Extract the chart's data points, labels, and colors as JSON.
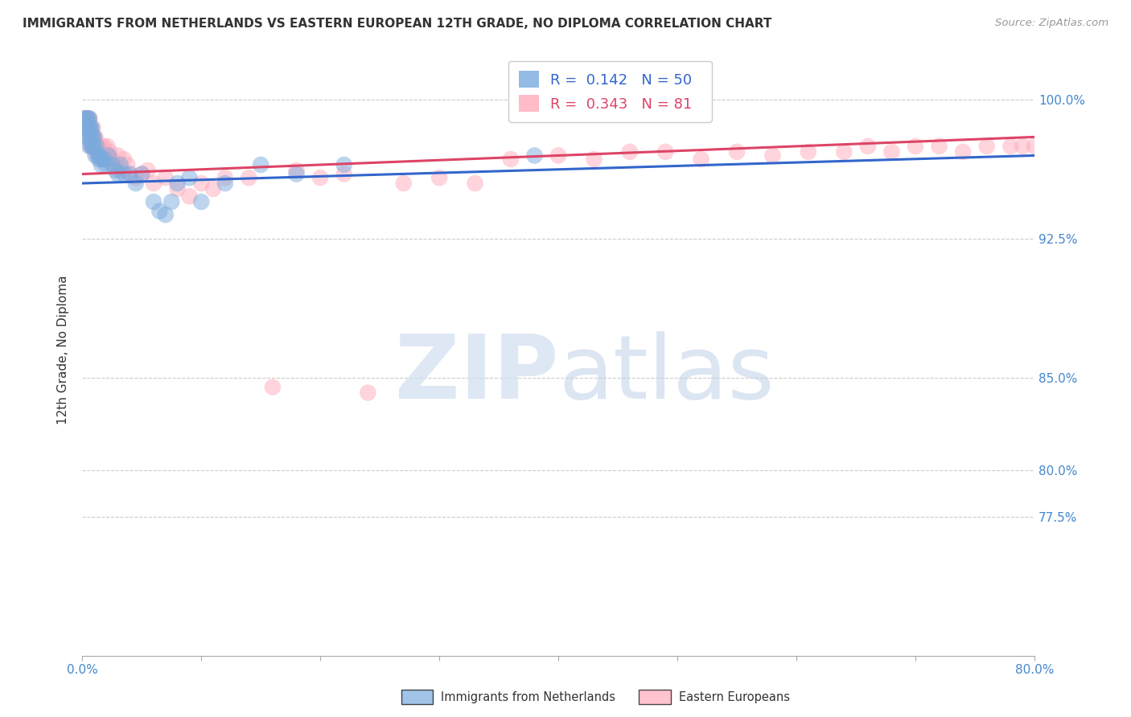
{
  "title": "IMMIGRANTS FROM NETHERLANDS VS EASTERN EUROPEAN 12TH GRADE, NO DIPLOMA CORRELATION CHART",
  "source": "Source: ZipAtlas.com",
  "ylabel": "12th Grade, No Diploma",
  "xlim": [
    0.0,
    0.8
  ],
  "ylim": [
    0.7,
    1.03
  ],
  "netherlands_R": 0.142,
  "netherlands_N": 50,
  "eastern_R": 0.343,
  "eastern_N": 81,
  "netherlands_color": "#7aaadd",
  "eastern_color": "#ffaabb",
  "netherlands_line_color": "#3366cc",
  "eastern_line_color": "#dd4466",
  "background_color": "#ffffff",
  "watermark_zip_color": "#d0dff0",
  "watermark_atlas_color": "#c0d0e8",
  "netherlands_x": [
    0.001,
    0.002,
    0.003,
    0.003,
    0.004,
    0.004,
    0.005,
    0.005,
    0.005,
    0.006,
    0.006,
    0.006,
    0.007,
    0.007,
    0.008,
    0.008,
    0.009,
    0.009,
    0.01,
    0.01,
    0.011,
    0.012,
    0.013,
    0.014,
    0.015,
    0.016,
    0.017,
    0.018,
    0.02,
    0.022,
    0.025,
    0.028,
    0.03,
    0.032,
    0.035,
    0.04,
    0.045,
    0.05,
    0.06,
    0.065,
    0.07,
    0.075,
    0.08,
    0.09,
    0.1,
    0.12,
    0.15,
    0.18,
    0.22,
    0.38
  ],
  "netherlands_y": [
    0.99,
    0.985,
    0.99,
    0.98,
    0.99,
    0.985,
    0.99,
    0.985,
    0.98,
    0.99,
    0.985,
    0.975,
    0.985,
    0.98,
    0.985,
    0.975,
    0.98,
    0.975,
    0.98,
    0.975,
    0.97,
    0.975,
    0.97,
    0.968,
    0.97,
    0.965,
    0.968,
    0.968,
    0.965,
    0.97,
    0.965,
    0.962,
    0.96,
    0.965,
    0.96,
    0.96,
    0.955,
    0.96,
    0.945,
    0.94,
    0.938,
    0.945,
    0.955,
    0.958,
    0.945,
    0.955,
    0.965,
    0.96,
    0.965,
    0.97
  ],
  "eastern_x": [
    0.001,
    0.002,
    0.003,
    0.003,
    0.004,
    0.004,
    0.005,
    0.005,
    0.006,
    0.006,
    0.006,
    0.007,
    0.007,
    0.008,
    0.008,
    0.009,
    0.009,
    0.01,
    0.01,
    0.011,
    0.011,
    0.012,
    0.012,
    0.013,
    0.014,
    0.015,
    0.016,
    0.017,
    0.018,
    0.019,
    0.02,
    0.021,
    0.022,
    0.023,
    0.025,
    0.027,
    0.03,
    0.032,
    0.035,
    0.038,
    0.04,
    0.045,
    0.05,
    0.055,
    0.06,
    0.07,
    0.08,
    0.09,
    0.1,
    0.11,
    0.12,
    0.14,
    0.16,
    0.18,
    0.2,
    0.22,
    0.24,
    0.27,
    0.3,
    0.33,
    0.36,
    0.4,
    0.43,
    0.46,
    0.49,
    0.52,
    0.55,
    0.58,
    0.61,
    0.64,
    0.66,
    0.68,
    0.7,
    0.72,
    0.74,
    0.76,
    0.78,
    0.79,
    0.8,
    0.81,
    0.82
  ],
  "eastern_y": [
    0.985,
    0.99,
    0.985,
    0.99,
    0.99,
    0.985,
    0.99,
    0.985,
    0.99,
    0.985,
    0.98,
    0.985,
    0.975,
    0.98,
    0.975,
    0.985,
    0.98,
    0.978,
    0.975,
    0.98,
    0.978,
    0.975,
    0.972,
    0.975,
    0.97,
    0.975,
    0.968,
    0.972,
    0.975,
    0.97,
    0.968,
    0.975,
    0.97,
    0.972,
    0.968,
    0.965,
    0.97,
    0.962,
    0.968,
    0.965,
    0.96,
    0.958,
    0.96,
    0.962,
    0.955,
    0.958,
    0.952,
    0.948,
    0.955,
    0.952,
    0.958,
    0.958,
    0.845,
    0.962,
    0.958,
    0.96,
    0.842,
    0.955,
    0.958,
    0.955,
    0.968,
    0.97,
    0.968,
    0.972,
    0.972,
    0.968,
    0.972,
    0.97,
    0.972,
    0.972,
    0.975,
    0.972,
    0.975,
    0.975,
    0.972,
    0.975,
    0.975,
    0.975,
    0.975,
    0.975,
    0.975
  ]
}
